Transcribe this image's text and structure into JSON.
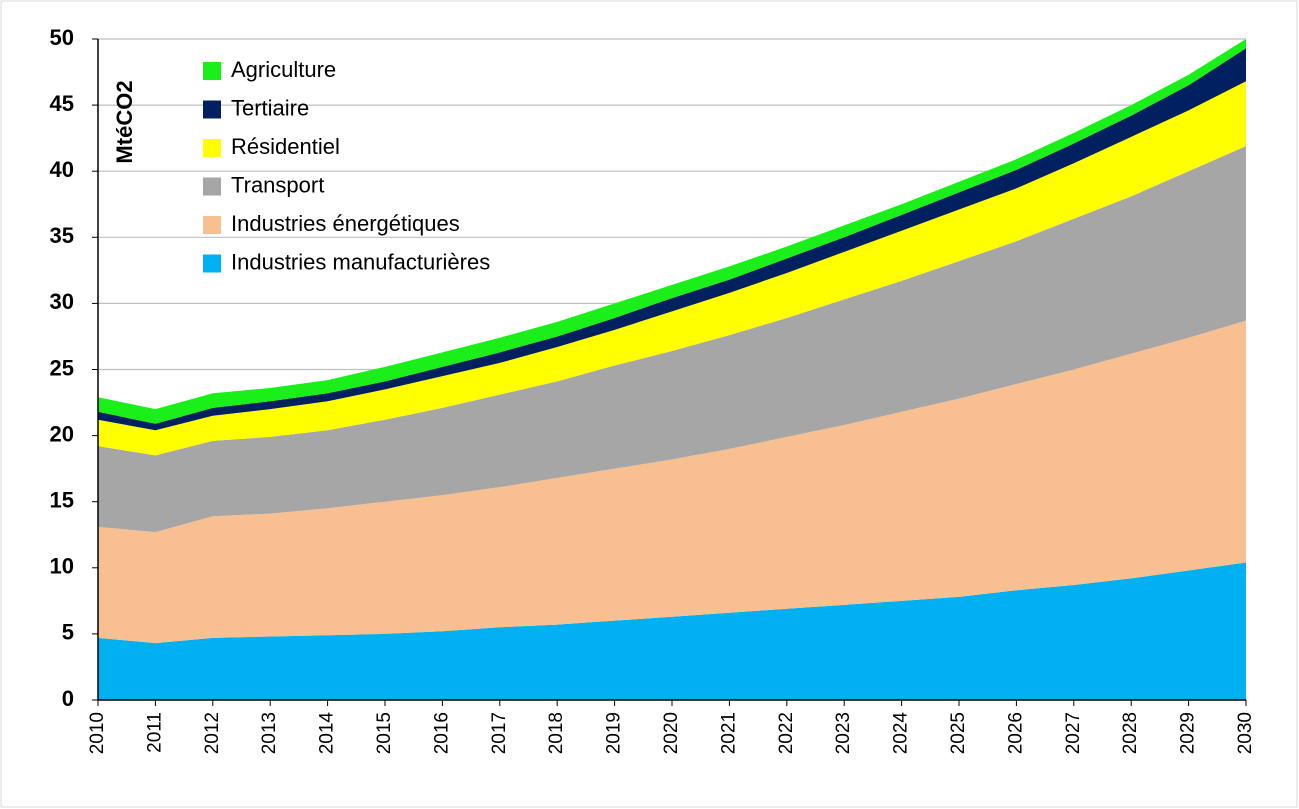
{
  "chart_data": {
    "type": "stacked_area",
    "y_label": "MtéCO2",
    "categories": [
      "2010",
      "2011",
      "2012",
      "2013",
      "2014",
      "2015",
      "2016",
      "2017",
      "2018",
      "2019",
      "2020",
      "2021",
      "2022",
      "2023",
      "2024",
      "2025",
      "2026",
      "2027",
      "2028",
      "2029",
      "2030"
    ],
    "series": [
      {
        "name": "Industries manufacturières",
        "color": "#00b0f0",
        "values": [
          4.7,
          4.3,
          4.7,
          4.8,
          4.9,
          5.0,
          5.2,
          5.5,
          5.7,
          6.0,
          6.3,
          6.6,
          6.9,
          7.2,
          7.5,
          7.8,
          8.3,
          8.7,
          9.2,
          9.8,
          10.4
        ]
      },
      {
        "name": "Industries énergétiques",
        "color": "#f8bf90",
        "values": [
          8.4,
          8.4,
          9.2,
          9.3,
          9.6,
          10.0,
          10.3,
          10.6,
          11.1,
          11.5,
          11.9,
          12.4,
          13.0,
          13.6,
          14.3,
          15.0,
          15.6,
          16.3,
          17.0,
          17.6,
          18.3
        ]
      },
      {
        "name": "Transport",
        "color": "#a6a6a6",
        "values": [
          6.1,
          5.8,
          5.7,
          5.8,
          5.9,
          6.2,
          6.6,
          7.0,
          7.3,
          7.8,
          8.2,
          8.6,
          9.0,
          9.5,
          9.9,
          10.4,
          10.8,
          11.4,
          11.9,
          12.6,
          13.2
        ]
      },
      {
        "name": "Résidentiel",
        "color": "#ffff00",
        "values": [
          2.0,
          1.9,
          1.9,
          2.1,
          2.2,
          2.3,
          2.4,
          2.4,
          2.6,
          2.7,
          3.0,
          3.2,
          3.4,
          3.6,
          3.8,
          3.9,
          4.0,
          4.2,
          4.5,
          4.6,
          4.9
        ]
      },
      {
        "name": "Tertiaire",
        "color": "#002060",
        "values": [
          0.6,
          0.5,
          0.6,
          0.6,
          0.6,
          0.6,
          0.7,
          0.8,
          0.8,
          0.9,
          1.0,
          1.0,
          1.1,
          1.1,
          1.2,
          1.3,
          1.4,
          1.5,
          1.6,
          1.9,
          2.5
        ]
      },
      {
        "name": "Agriculture",
        "color": "#1aef1a",
        "values": [
          1.1,
          1.1,
          1.1,
          1.0,
          1.0,
          1.1,
          1.1,
          1.1,
          1.1,
          1.1,
          1.0,
          1.0,
          0.9,
          0.9,
          0.8,
          0.8,
          0.8,
          0.8,
          0.8,
          0.8,
          0.7
        ]
      }
    ],
    "ylim": [
      0,
      50
    ],
    "yticks": [
      0,
      5,
      10,
      15,
      20,
      25,
      30,
      35,
      40,
      45,
      50
    ],
    "grid": true
  }
}
